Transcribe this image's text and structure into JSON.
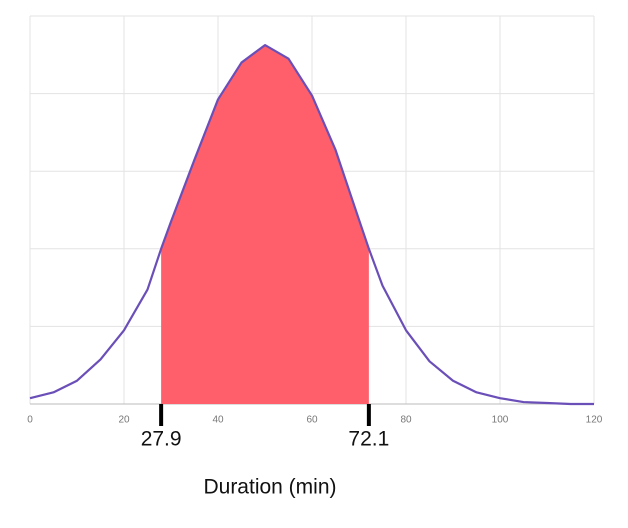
{
  "chart_data": {
    "type": "area",
    "xlabel": "Duration (min)",
    "x": [
      0,
      5,
      10,
      15,
      20,
      25,
      27.9,
      30,
      35,
      40,
      45,
      50,
      55,
      60,
      65,
      70,
      72.1,
      75,
      80,
      85,
      90,
      95,
      100,
      105,
      110,
      115,
      120
    ],
    "series": [
      {
        "color": "#6b4fb8",
        "values": [
          0.0003,
          0.0006,
          0.0012,
          0.0023,
          0.0038,
          0.0059,
          0.008,
          0.0094,
          0.0126,
          0.0157,
          0.0176,
          0.0185,
          0.0178,
          0.0159,
          0.0131,
          0.0095,
          0.008,
          0.0061,
          0.0038,
          0.0022,
          0.0012,
          0.0006,
          0.0003,
          0.0001,
          5e-05,
          0,
          0
        ]
      }
    ],
    "highlight": {
      "from": 27.9,
      "to": 72.1,
      "color": "#ff5f6a"
    },
    "xlim": [
      0,
      120
    ],
    "xticks": [
      0,
      20,
      40,
      60,
      80,
      100,
      120
    ],
    "ylim": [
      0,
      0.02
    ],
    "yticks": [
      0,
      0.004,
      0.008,
      0.012,
      0.016,
      0.02
    ],
    "grid": true
  }
}
